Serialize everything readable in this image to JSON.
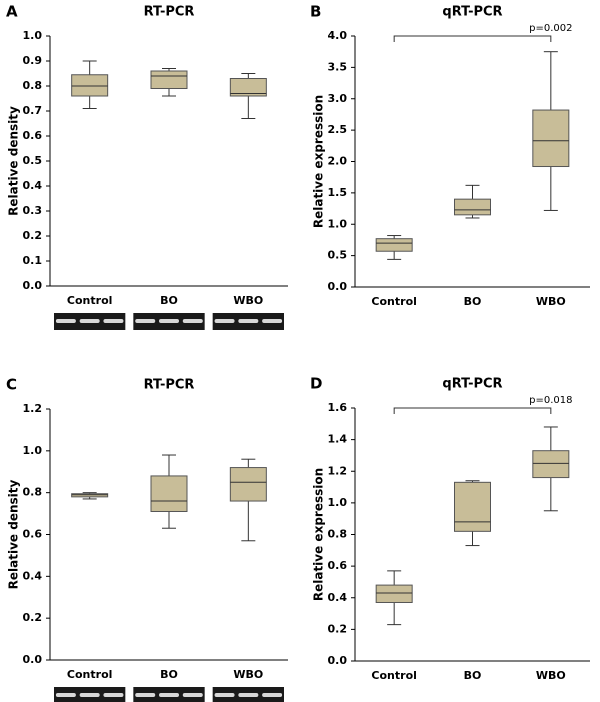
{
  "chart_data": [
    {
      "type": "box",
      "panel": "A",
      "title": "RT-PCR",
      "y_label": "Relative density",
      "categories": [
        "Control",
        "BO",
        "WBO"
      ],
      "color": "#c8bd98",
      "min": [
        0.71,
        0.76,
        0.67
      ],
      "q1": [
        0.76,
        0.79,
        0.76
      ],
      "median": [
        0.8,
        0.84,
        0.77
      ],
      "q3": [
        0.845,
        0.86,
        0.83
      ],
      "max": [
        0.9,
        0.87,
        0.85
      ],
      "ylim": [
        0,
        1
      ],
      "yticks": [
        {
          "value": 0,
          "label": "0.0"
        },
        0.1,
        0.2,
        0.3,
        0.4,
        0.5,
        0.6,
        0.7,
        0.8,
        0.9,
        {
          "value": 1,
          "label": "1.0"
        }
      ]
    },
    {
      "type": "box",
      "panel": "B",
      "title": "qRT-PCR",
      "y_label": "Relative expression",
      "annotation": "p=0.002",
      "categories": [
        "Control",
        "BO",
        "WBO"
      ],
      "color": "#c8bd98",
      "min": [
        0.44,
        1.1,
        1.22
      ],
      "q1": [
        0.57,
        1.15,
        1.92
      ],
      "median": [
        0.7,
        1.23,
        2.33
      ],
      "q3": [
        0.77,
        1.4,
        2.82
      ],
      "max": [
        0.82,
        1.62,
        3.75
      ],
      "ylim": [
        0,
        4
      ],
      "yticks": [
        {
          "value": 0,
          "label": "0.0"
        },
        0.5,
        {
          "value": 1,
          "label": "1.0"
        },
        1.5,
        {
          "value": 2,
          "label": "2.0"
        },
        2.5,
        {
          "value": 3,
          "label": "3.0"
        },
        3.5,
        {
          "value": 4,
          "label": "4.0"
        }
      ]
    },
    {
      "type": "box",
      "panel": "C",
      "title": "RT-PCR",
      "y_label": "Relative density",
      "categories": [
        "Control",
        "BO",
        "WBO"
      ],
      "color": "#c8bd98",
      "min": [
        0.77,
        0.63,
        0.57
      ],
      "q1": [
        0.78,
        0.71,
        0.76
      ],
      "median": [
        0.79,
        0.76,
        0.85
      ],
      "q3": [
        0.795,
        0.88,
        0.92
      ],
      "max": [
        0.8,
        0.98,
        0.96
      ],
      "ylim": [
        0,
        1.2
      ],
      "yticks": [
        {
          "value": 0,
          "label": "0.0"
        },
        0.2,
        0.4,
        0.6,
        0.8,
        {
          "value": 1,
          "label": "1.0"
        },
        1.2
      ]
    },
    {
      "type": "box",
      "panel": "D",
      "title": "qRT-PCR",
      "y_label": "Relative expression",
      "annotation": "p=0.018",
      "categories": [
        "Control",
        "BO",
        "WBO"
      ],
      "color": "#c8bd98",
      "min": [
        0.23,
        0.73,
        0.95
      ],
      "q1": [
        0.37,
        0.82,
        1.16
      ],
      "median": [
        0.43,
        0.88,
        1.25
      ],
      "q3": [
        0.48,
        1.13,
        1.33
      ],
      "max": [
        0.57,
        1.14,
        1.48
      ],
      "ylim": [
        0,
        1.6
      ],
      "yticks": [
        {
          "value": 0,
          "label": "0.0"
        },
        0.2,
        0.4,
        0.6,
        0.8,
        {
          "value": 1,
          "label": "1.0"
        },
        1.2,
        1.4,
        1.6
      ]
    }
  ]
}
